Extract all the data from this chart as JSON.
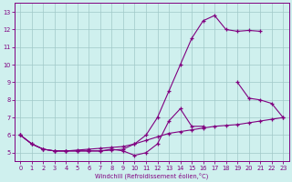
{
  "xlabel": "Windchill (Refroidissement éolien,°C)",
  "bg_color": "#cff0ee",
  "line_color": "#800080",
  "grid_color": "#a0c8c8",
  "x_ticks": [
    0,
    1,
    2,
    3,
    4,
    5,
    6,
    7,
    8,
    9,
    10,
    11,
    12,
    13,
    14,
    15,
    16,
    17,
    18,
    19,
    20,
    21,
    22,
    23
  ],
  "y_ticks": [
    5,
    6,
    7,
    8,
    9,
    10,
    11,
    12,
    13
  ],
  "xlim": [
    -0.5,
    23.5
  ],
  "ylim": [
    4.5,
    13.5
  ],
  "line1_x": [
    0,
    1,
    2,
    3,
    4,
    5,
    6,
    7,
    8,
    9,
    10,
    11,
    12,
    13,
    14,
    15,
    16,
    17,
    18,
    19,
    20,
    21
  ],
  "line1_y": [
    6.0,
    5.5,
    5.2,
    5.1,
    5.1,
    5.1,
    5.1,
    5.1,
    5.15,
    5.2,
    5.5,
    6.0,
    7.0,
    8.5,
    10.0,
    11.5,
    12.5,
    12.8,
    12.0,
    11.9,
    11.95,
    11.9
  ],
  "line2_x": [
    0,
    1,
    2,
    3,
    4,
    5,
    6,
    7,
    8,
    9,
    10,
    11,
    12,
    13,
    14,
    15,
    16
  ],
  "line2_y": [
    6.0,
    5.5,
    5.2,
    5.1,
    5.1,
    5.1,
    5.1,
    5.1,
    5.2,
    5.1,
    4.85,
    5.0,
    5.5,
    6.8,
    7.5,
    6.5,
    6.5
  ],
  "line3_x": [
    0,
    1,
    2,
    3,
    4,
    5,
    6,
    7,
    8,
    9,
    10,
    11,
    12,
    13,
    14,
    15,
    16,
    17,
    18,
    19,
    20,
    21,
    22,
    23
  ],
  "line3_y": [
    6.0,
    5.5,
    5.2,
    5.1,
    5.1,
    5.15,
    5.2,
    5.25,
    5.3,
    5.35,
    5.5,
    5.7,
    5.9,
    6.1,
    6.2,
    6.3,
    6.4,
    6.5,
    6.55,
    6.6,
    6.7,
    6.8,
    6.9,
    7.0
  ],
  "line4_x": [
    19,
    20,
    21,
    22,
    23
  ],
  "line4_y": [
    9.0,
    8.1,
    8.0,
    7.8,
    7.0
  ]
}
